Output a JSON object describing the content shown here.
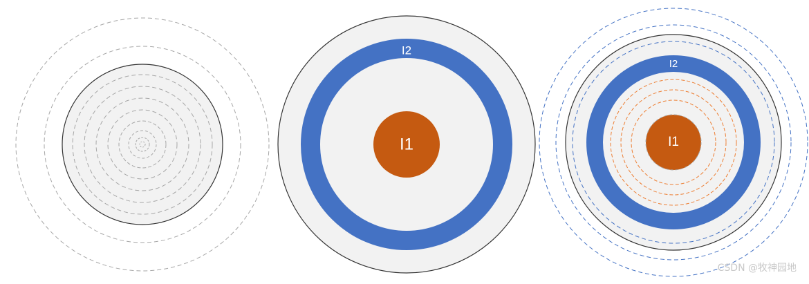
{
  "diagram": {
    "label_inner": "I1",
    "label_ring": "I2"
  },
  "colors": {
    "disk_fill": "#f2f2f2",
    "outline": "#333333",
    "gray_dash": "#a6a6a6",
    "ring_blue": "#4472c4",
    "core_orange": "#c55a11",
    "blue_dash": "#4472c4",
    "orange_dash": "#ed7d31"
  },
  "watermark": "CSDN @牧神园地"
}
